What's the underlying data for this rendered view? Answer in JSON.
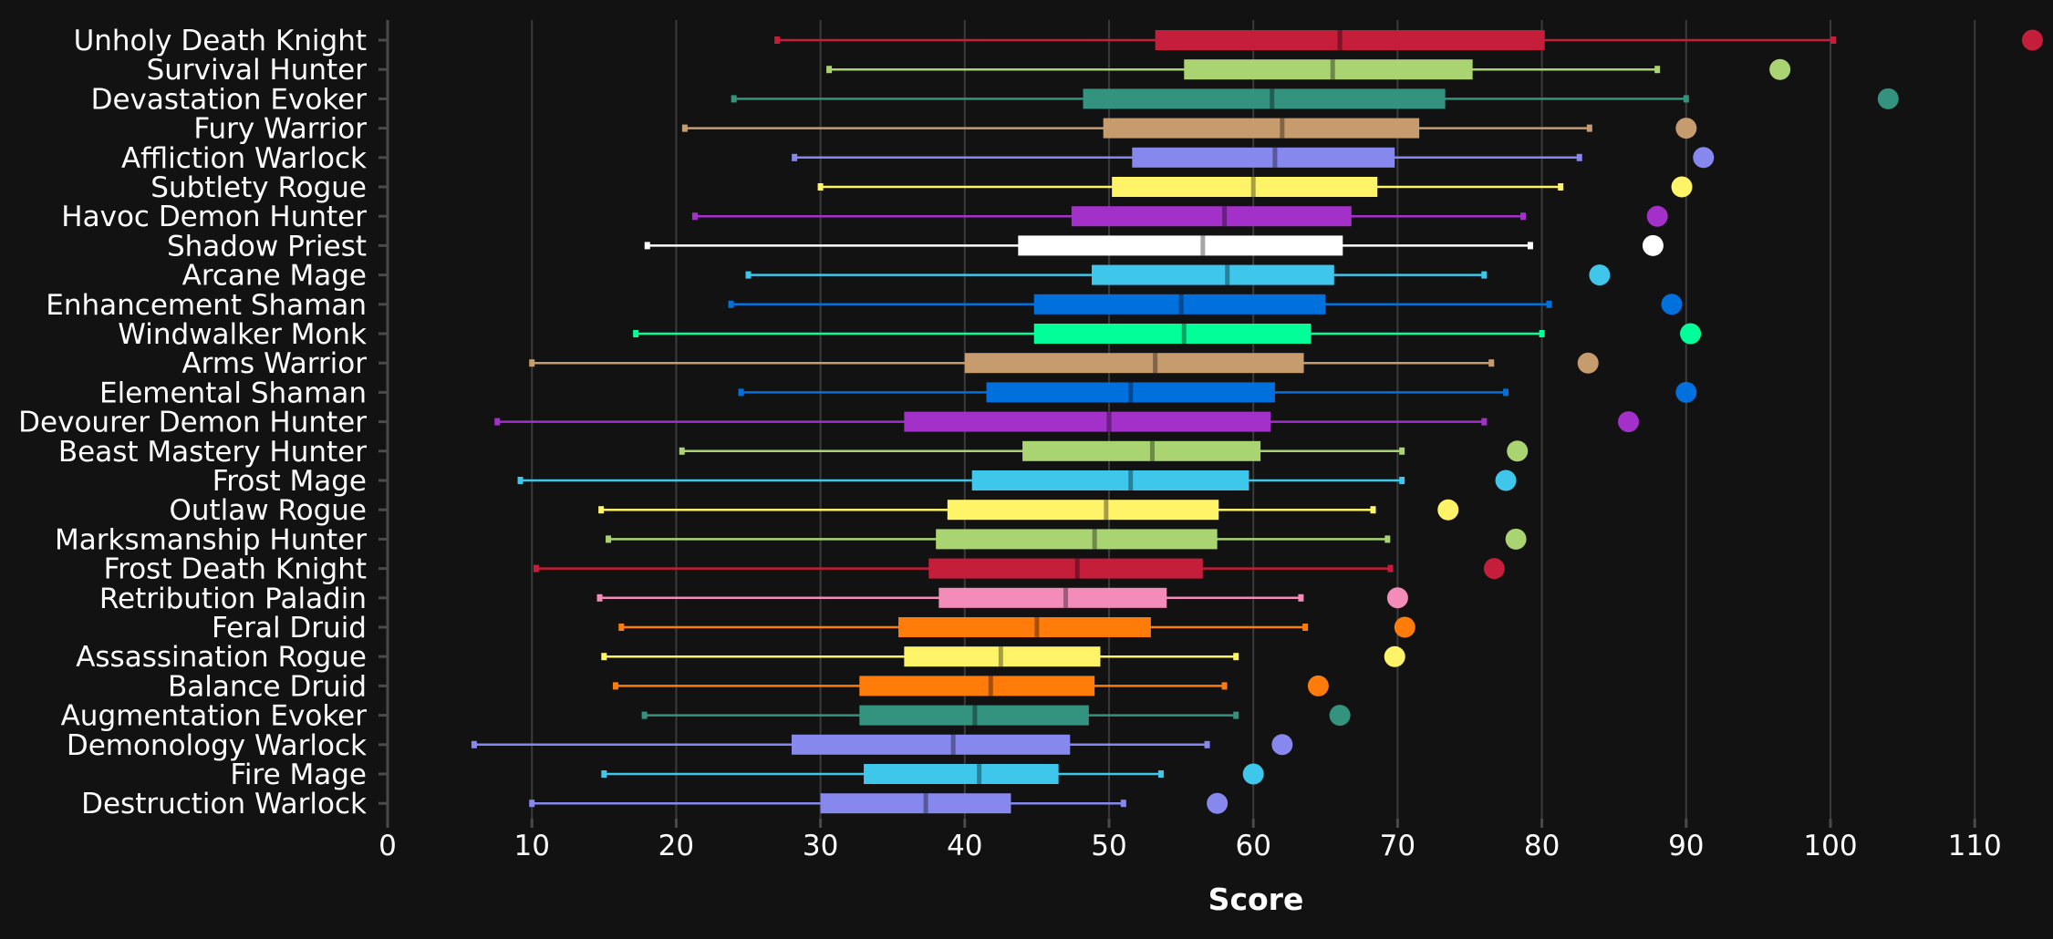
{
  "chart_data": {
    "type": "box",
    "xlabel": "Score",
    "xlim": [
      0,
      115
    ],
    "xticks": [
      0,
      10,
      20,
      30,
      40,
      50,
      60,
      70,
      80,
      90,
      100,
      110
    ],
    "grid": true,
    "categories": [
      "Unholy Death Knight",
      "Survival Hunter",
      "Devastation Evoker",
      "Fury Warrior",
      "Affliction Warlock",
      "Subtlety Rogue",
      "Havoc Demon Hunter",
      "Shadow Priest",
      "Arcane Mage",
      "Enhancement Shaman",
      "Windwalker Monk",
      "Arms Warrior",
      "Elemental Shaman",
      "Devourer Demon Hunter",
      "Beast Mastery Hunter",
      "Frost Mage",
      "Outlaw Rogue",
      "Marksmanship Hunter",
      "Frost Death Knight",
      "Retribution Paladin",
      "Feral Druid",
      "Assassination Rogue",
      "Balance Druid",
      "Augmentation Evoker",
      "Demonology Warlock",
      "Fire Mage",
      "Destruction Warlock"
    ],
    "series": [
      {
        "min": 27.0,
        "q1": 53.2,
        "median": 66.0,
        "q3": 80.2,
        "max": 100.2,
        "outlier": 114.0,
        "color": "#C41E3A"
      },
      {
        "min": 30.6,
        "q1": 55.2,
        "median": 65.5,
        "q3": 75.2,
        "max": 88.0,
        "outlier": 96.5,
        "color": "#AAD372"
      },
      {
        "min": 24.0,
        "q1": 48.2,
        "median": 61.3,
        "q3": 73.3,
        "max": 90.0,
        "outlier": 104.0,
        "color": "#33937F"
      },
      {
        "min": 20.6,
        "q1": 49.6,
        "median": 62.0,
        "q3": 71.5,
        "max": 83.3,
        "outlier": 90.0,
        "color": "#C69B6D"
      },
      {
        "min": 28.2,
        "q1": 51.6,
        "median": 61.5,
        "q3": 69.8,
        "max": 82.6,
        "outlier": 91.2,
        "color": "#8788EE"
      },
      {
        "min": 30.0,
        "q1": 50.2,
        "median": 60.0,
        "q3": 68.6,
        "max": 81.3,
        "outlier": 89.7,
        "color": "#FFF468"
      },
      {
        "min": 21.3,
        "q1": 47.4,
        "median": 58.0,
        "q3": 66.8,
        "max": 78.7,
        "outlier": 88.0,
        "color": "#A330C9"
      },
      {
        "min": 18.0,
        "q1": 43.7,
        "median": 56.5,
        "q3": 66.2,
        "max": 79.2,
        "outlier": 87.7,
        "color": "#FFFFFF"
      },
      {
        "min": 25.0,
        "q1": 48.8,
        "median": 58.2,
        "q3": 65.6,
        "max": 76.0,
        "outlier": 84.0,
        "color": "#3FC7EB"
      },
      {
        "min": 23.8,
        "q1": 44.8,
        "median": 55.0,
        "q3": 65.0,
        "max": 80.5,
        "outlier": 89.0,
        "color": "#0070DD"
      },
      {
        "min": 17.2,
        "q1": 44.8,
        "median": 55.2,
        "q3": 64.0,
        "max": 80.0,
        "outlier": 90.3,
        "color": "#00FF98"
      },
      {
        "min": 10.0,
        "q1": 40.0,
        "median": 53.2,
        "q3": 63.5,
        "max": 76.5,
        "outlier": 83.2,
        "color": "#C69B6D"
      },
      {
        "min": 24.5,
        "q1": 41.5,
        "median": 51.5,
        "q3": 61.5,
        "max": 77.5,
        "outlier": 90.0,
        "color": "#0070DD"
      },
      {
        "min": 7.6,
        "q1": 35.8,
        "median": 50.0,
        "q3": 61.2,
        "max": 76.0,
        "outlier": 86.0,
        "color": "#A330C9"
      },
      {
        "min": 20.4,
        "q1": 44.0,
        "median": 53.0,
        "q3": 60.5,
        "max": 70.3,
        "outlier": 78.3,
        "color": "#AAD372"
      },
      {
        "min": 9.2,
        "q1": 40.5,
        "median": 51.5,
        "q3": 59.7,
        "max": 70.3,
        "outlier": 77.5,
        "color": "#3FC7EB"
      },
      {
        "min": 14.8,
        "q1": 38.8,
        "median": 49.8,
        "q3": 57.6,
        "max": 68.3,
        "outlier": 73.5,
        "color": "#FFF468"
      },
      {
        "min": 15.3,
        "q1": 38.0,
        "median": 49.0,
        "q3": 57.5,
        "max": 69.3,
        "outlier": 78.2,
        "color": "#AAD372"
      },
      {
        "min": 10.3,
        "q1": 37.5,
        "median": 47.8,
        "q3": 56.5,
        "max": 69.5,
        "outlier": 76.7,
        "color": "#C41E3A"
      },
      {
        "min": 14.7,
        "q1": 38.2,
        "median": 47.0,
        "q3": 54.0,
        "max": 63.3,
        "outlier": 70.0,
        "color": "#F48CBA"
      },
      {
        "min": 16.2,
        "q1": 35.4,
        "median": 45.0,
        "q3": 52.9,
        "max": 63.6,
        "outlier": 70.5,
        "color": "#FF7C0A"
      },
      {
        "min": 15.0,
        "q1": 35.8,
        "median": 42.5,
        "q3": 49.4,
        "max": 58.8,
        "outlier": 69.8,
        "color": "#FFF468"
      },
      {
        "min": 15.8,
        "q1": 32.7,
        "median": 41.8,
        "q3": 49.0,
        "max": 58.0,
        "outlier": 64.5,
        "color": "#FF7C0A"
      },
      {
        "min": 17.8,
        "q1": 32.7,
        "median": 40.7,
        "q3": 48.6,
        "max": 58.8,
        "outlier": 66.0,
        "color": "#33937F"
      },
      {
        "min": 6.0,
        "q1": 28.0,
        "median": 39.2,
        "q3": 47.3,
        "max": 56.8,
        "outlier": 62.0,
        "color": "#8788EE"
      },
      {
        "min": 15.0,
        "q1": 33.0,
        "median": 41.0,
        "q3": 46.5,
        "max": 53.6,
        "outlier": 60.0,
        "color": "#3FC7EB"
      },
      {
        "min": 10.0,
        "q1": 30.0,
        "median": 37.3,
        "q3": 43.2,
        "max": 51.0,
        "outlier": 57.5,
        "color": "#8788EE"
      }
    ]
  }
}
